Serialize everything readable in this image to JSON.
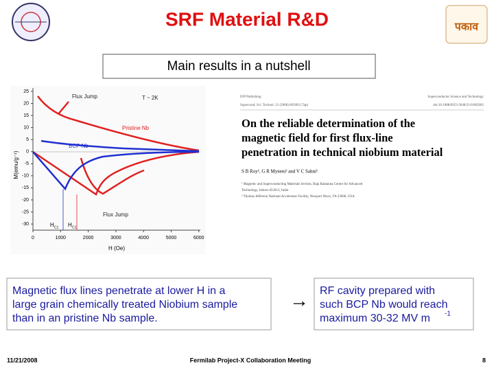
{
  "header": {
    "title": "SRF Material R&D",
    "subtitle": "Main results in a nutshell"
  },
  "figure": {
    "yticks": [
      25,
      20,
      15,
      10,
      5,
      0,
      -5,
      -10,
      -15,
      -20,
      -25,
      -30
    ],
    "xticks": [
      0,
      1000,
      2000,
      3000,
      4000,
      5000,
      6000
    ],
    "ylabel": "M(emu/g⁻¹)",
    "xlabel": "H (Oe)",
    "annotations": [
      "Flux Jump",
      "T ~ 2K",
      "Pristine Nb",
      "BCP Nb",
      "Flux Jump"
    ],
    "hc1": [
      {
        "base": "H",
        "sub": "C1"
      },
      {
        "base": "H",
        "sub": "C1"
      }
    ]
  },
  "paper": {
    "header_lines": [
      "IOP Publishing",
      "Supercond. Sci. Technol. 21 (2008) 065002 (7pp)",
      "Superconductor Science and Technology",
      "doi:10.1088/0953-2048/21/6/065002"
    ],
    "title": [
      "On the reliable determination of the",
      "magnetic field for first flux-line",
      "penetration in technical niobium material"
    ],
    "authors": "S B Roy¹, G R Myneni² and V C Sahni¹",
    "affiliations": [
      "¹ Magnetic and Superconducting Materials Section, Raja Ramanna Centre for Advanced",
      "Technology, Indore-452013, India",
      "² Thomas Jefferson National Accelerator Facility, Newport News, VA 23606, USA"
    ]
  },
  "left_note": [
    "Magnetic flux lines penetrate at lower H in a",
    "large grain chemically treated Niobium sample",
    "than in an pristine Nb sample."
  ],
  "arrow": "→",
  "right_note": {
    "lines": [
      "RF cavity prepared with",
      "such BCP Nb would reach",
      "maximum 30-32 MV m"
    ],
    "superscript": "-1"
  },
  "footer": {
    "date": "11/21/2008",
    "meeting": "Fermilab Project-X Collaboration Meeting",
    "page": "8"
  }
}
